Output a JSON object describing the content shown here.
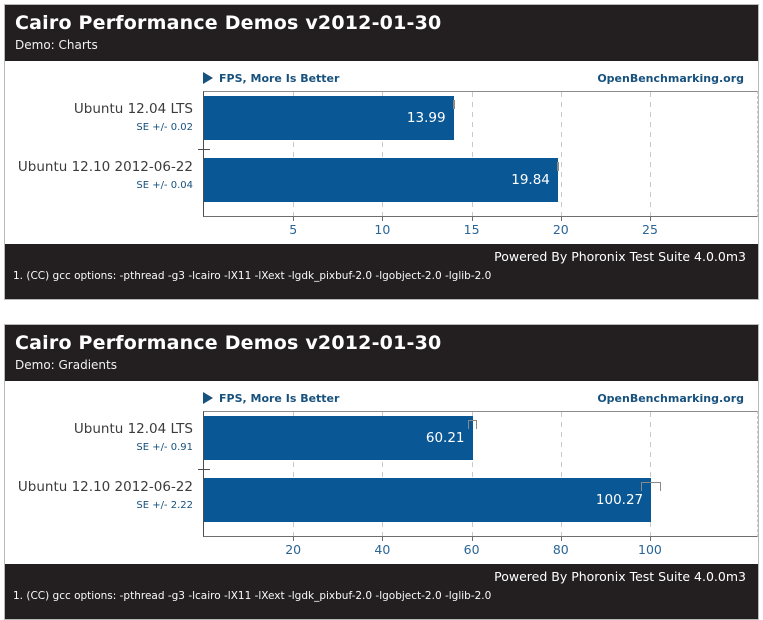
{
  "colors": {
    "bar_blue": "#0a5795",
    "panel_black": "#231f20",
    "accent_blue": "#17517e",
    "tick_blue": "#2b6596",
    "grid_gray": "#c9c9c9"
  },
  "chart_data": [
    {
      "type": "bar",
      "orientation": "horizontal",
      "title": "Cairo Performance Demos v2012-01-30",
      "subtitle": "Demo: Charts",
      "result_scale": "FPS, More Is Better",
      "watermark": "OpenBenchmarking.org",
      "categories": [
        "Ubuntu 12.04 LTS",
        "Ubuntu 12.10 2012-06-22"
      ],
      "values": [
        13.99,
        19.84
      ],
      "value_labels": [
        "13.99",
        "19.84"
      ],
      "se": [
        0.02,
        0.04
      ],
      "se_labels": [
        "SE +/- 0.02",
        "SE +/- 0.04"
      ],
      "xticks": [
        5,
        10,
        15,
        20,
        25
      ],
      "xlim": [
        0,
        31
      ],
      "grid": "vertical-dashed",
      "legend_position": "none",
      "powered_by": "Powered By Phoronix Test Suite 4.0.0m3",
      "footnote": "1. (CC) gcc options: -pthread -g3 -lcairo -lX11 -lXext -lgdk_pixbuf-2.0 -lgobject-2.0 -lglib-2.0"
    },
    {
      "type": "bar",
      "orientation": "horizontal",
      "title": "Cairo Performance Demos v2012-01-30",
      "subtitle": "Demo: Gradients",
      "result_scale": "FPS, More Is Better",
      "watermark": "OpenBenchmarking.org",
      "categories": [
        "Ubuntu 12.04 LTS",
        "Ubuntu 12.10 2012-06-22"
      ],
      "values": [
        60.21,
        100.27
      ],
      "value_labels": [
        "60.21",
        "100.27"
      ],
      "se": [
        0.91,
        2.22
      ],
      "se_labels": [
        "SE +/- 0.91",
        "SE +/- 2.22"
      ],
      "xticks": [
        20,
        40,
        60,
        80,
        100
      ],
      "xlim": [
        0,
        124
      ],
      "grid": "vertical-dashed",
      "legend_position": "none",
      "powered_by": "Powered By Phoronix Test Suite 4.0.0m3",
      "footnote": "1. (CC) gcc options: -pthread -g3 -lcairo -lX11 -lXext -lgdk_pixbuf-2.0 -lgobject-2.0 -lglib-2.0"
    }
  ]
}
